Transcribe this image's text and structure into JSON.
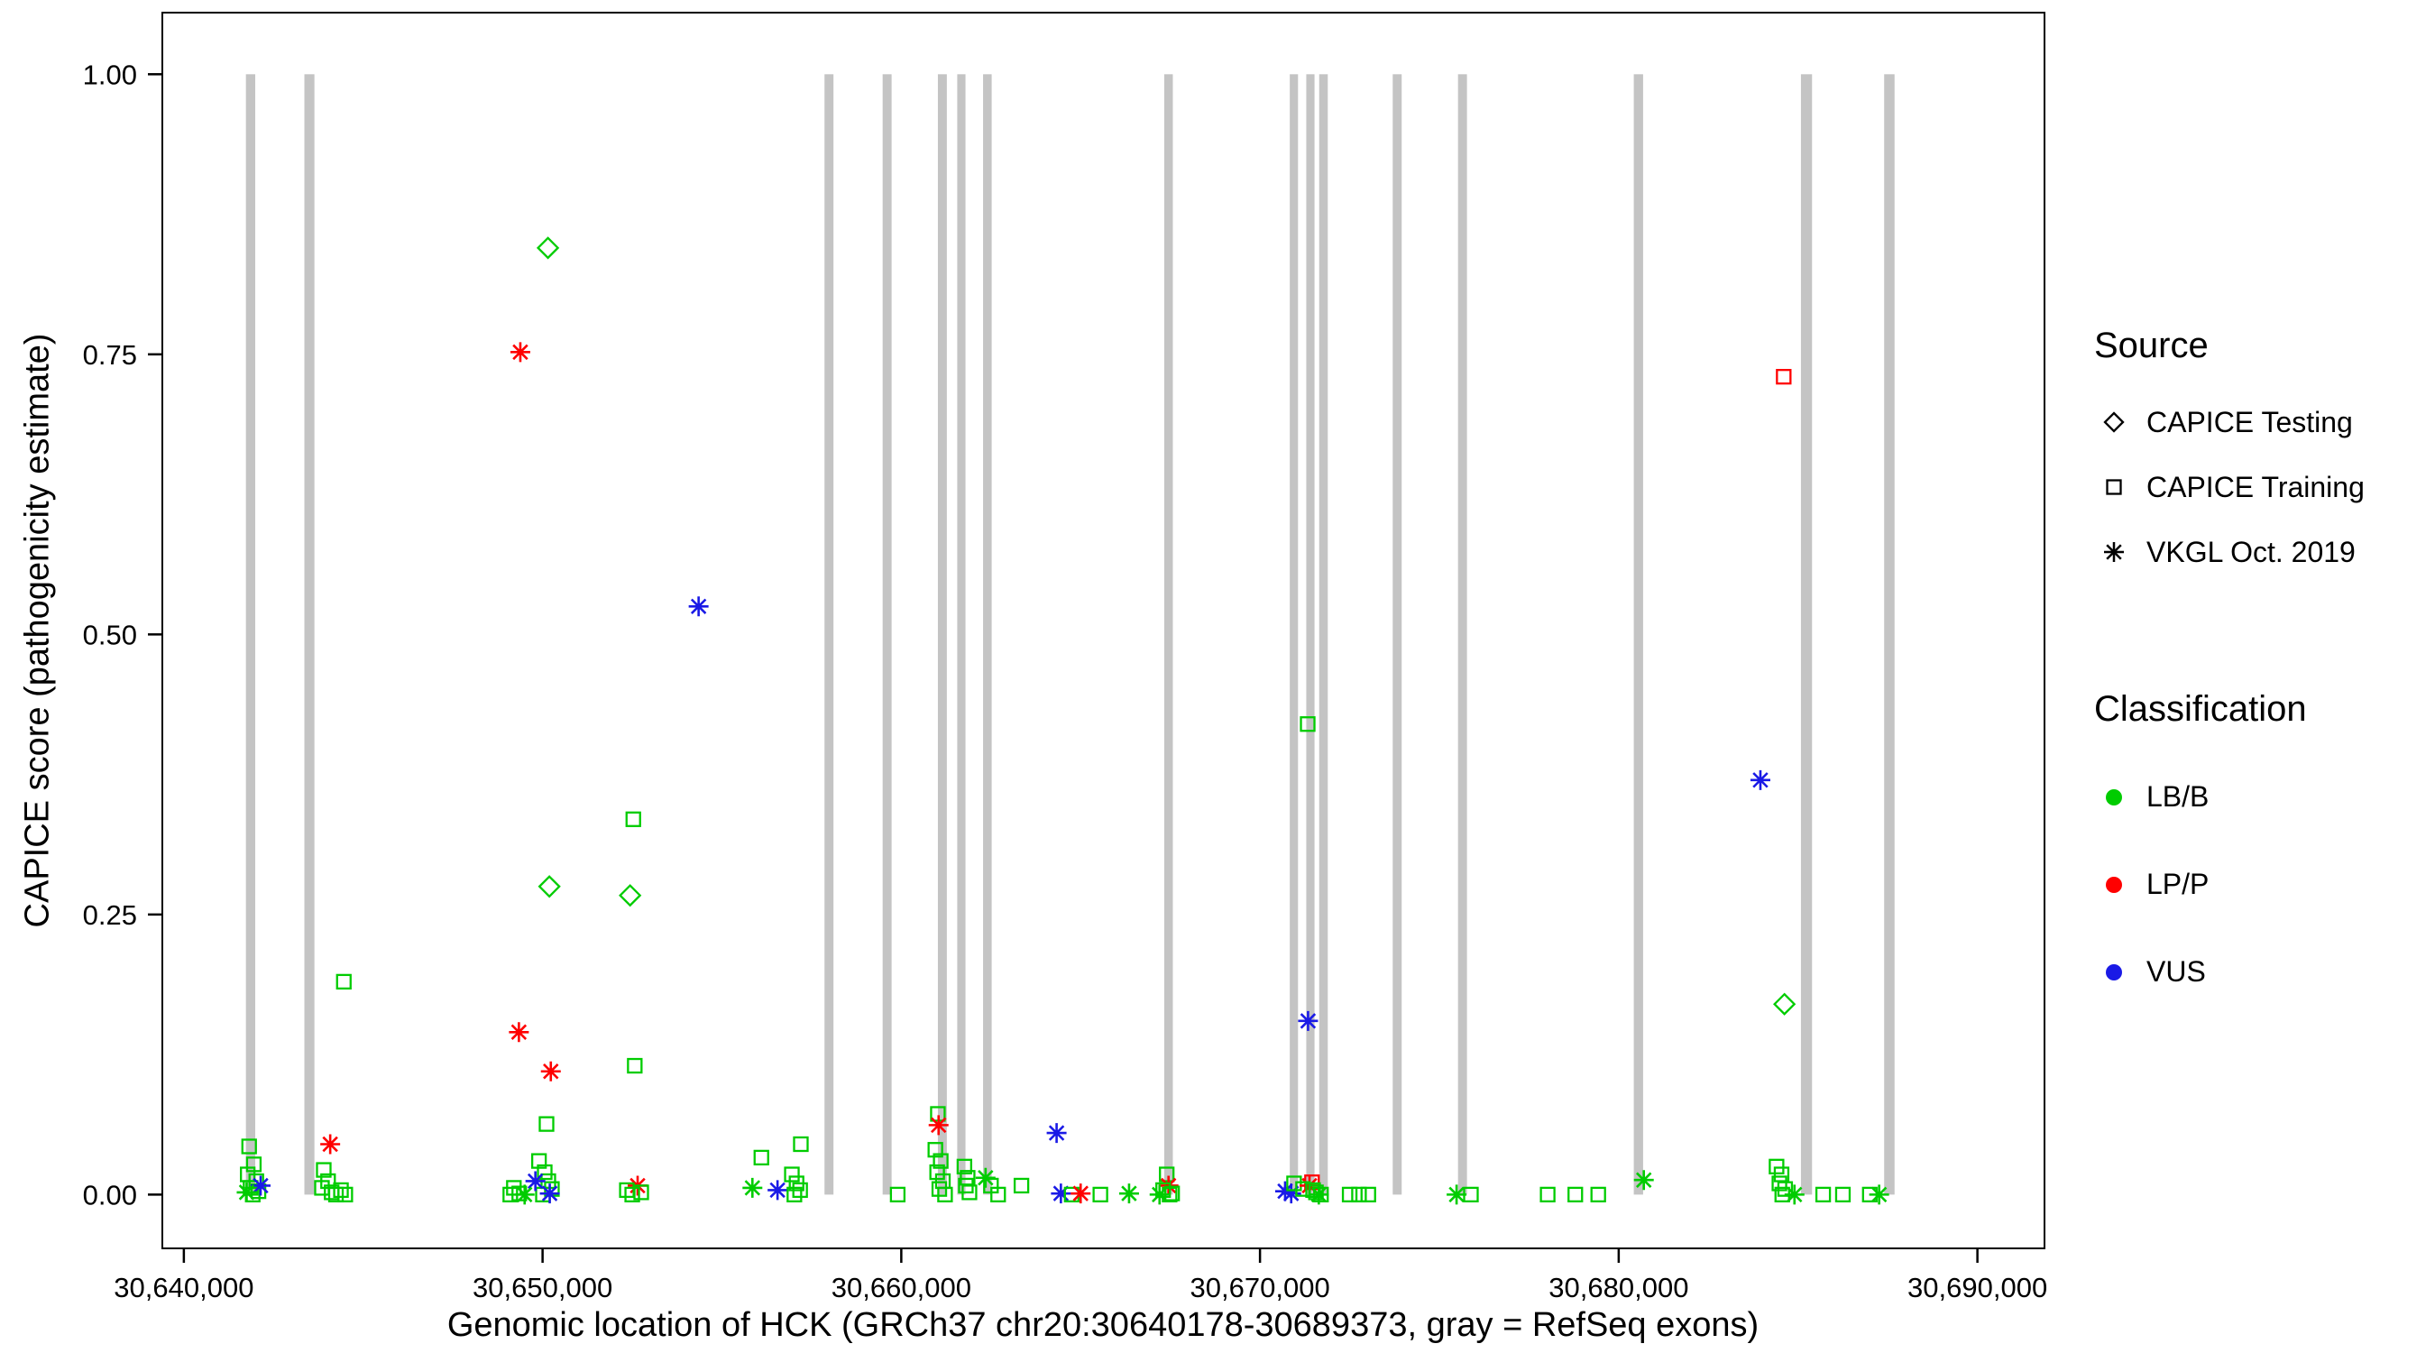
{
  "axes": {
    "x_label": "Genomic location of HCK (GRCh37 chr20:30640178-30689373, gray = RefSeq exons)",
    "y_label": "CAPICE score (pathogenicity estimate)"
  },
  "legend": {
    "source": {
      "title": "Source",
      "items": [
        {
          "label": "CAPICE Testing",
          "marker": "diamond"
        },
        {
          "label": "CAPICE Training",
          "marker": "square"
        },
        {
          "label": "VKGL Oct. 2019",
          "marker": "asterisk"
        }
      ]
    },
    "classification": {
      "title": "Classification",
      "items": [
        {
          "label": "LB/B",
          "color": "#00cc00"
        },
        {
          "label": "LP/P",
          "color": "#ff0000"
        },
        {
          "label": "VUS",
          "color": "#1a1ae6"
        }
      ]
    }
  },
  "chart_data": {
    "type": "scatter",
    "title": "",
    "xlabel": "Genomic location of HCK (GRCh37 chr20:30640178-30689373, gray = RefSeq exons)",
    "ylabel": "CAPICE score (pathogenicity estimate)",
    "xlim": [
      30639400,
      30691870
    ],
    "ylim": [
      0,
      1
    ],
    "ylim_expanded": [
      -0.048,
      1.055
    ],
    "grid": false,
    "legend_position": "right",
    "x_ticks": {
      "values": [
        30640000,
        30650000,
        30660000,
        30670000,
        30680000,
        30690000
      ],
      "labels": [
        "30,640,000",
        "30,650,000",
        "30,660,000",
        "30,670,000",
        "30,680,000",
        "30,690,000"
      ]
    },
    "y_ticks": {
      "values": [
        0,
        0.25,
        0.5,
        0.75,
        1.0
      ],
      "labels": [
        "0.00",
        "0.25",
        "0.50",
        "0.75",
        "1.00"
      ]
    },
    "exon_color": "#c4c4c4",
    "exons": [
      [
        30641730,
        30641990
      ],
      [
        30643360,
        30643640
      ],
      [
        30657860,
        30658110
      ],
      [
        30659480,
        30659730
      ],
      [
        30661020,
        30661270
      ],
      [
        30661560,
        30661790
      ],
      [
        30662280,
        30662520
      ],
      [
        30667330,
        30667570
      ],
      [
        30670830,
        30671060
      ],
      [
        30671290,
        30671520
      ],
      [
        30671650,
        30671890
      ],
      [
        30673700,
        30673950
      ],
      [
        30675520,
        30675770
      ],
      [
        30680420,
        30680680
      ],
      [
        30685080,
        30685390
      ],
      [
        30687400,
        30687690
      ]
    ],
    "colors": {
      "LB/B": "#00cc00",
      "LP/P": "#ff0000",
      "VUS": "#1a1ae6"
    },
    "marker_by_source": {
      "CAPICE Testing": "diamond",
      "CAPICE Training": "square",
      "VKGL Oct. 2019": "asterisk"
    },
    "encoding": {
      "point": [
        "x",
        "y",
        "source",
        "class"
      ],
      "source_codes": {
        "T": "CAPICE Testing",
        "R": "CAPICE Training",
        "V": "VKGL Oct. 2019"
      },
      "class_codes": {
        "B": "LB/B",
        "P": "LP/P",
        "U": "VUS"
      }
    },
    "points": [
      [
        30641820,
        0.043,
        "R",
        "B"
      ],
      [
        30641950,
        0.027,
        "R",
        "B"
      ],
      [
        30641780,
        0.018,
        "R",
        "B"
      ],
      [
        30642020,
        0.012,
        "R",
        "B"
      ],
      [
        30641860,
        0.006,
        "R",
        "B"
      ],
      [
        30642080,
        0.003,
        "R",
        "B"
      ],
      [
        30641920,
        0.0,
        "R",
        "B"
      ],
      [
        30642140,
        0.008,
        "V",
        "U"
      ],
      [
        30641750,
        0.002,
        "V",
        "B"
      ],
      [
        30644080,
        0.045,
        "V",
        "P"
      ],
      [
        30644460,
        0.19,
        "R",
        "B"
      ],
      [
        30643900,
        0.022,
        "R",
        "B"
      ],
      [
        30644020,
        0.012,
        "R",
        "B"
      ],
      [
        30643850,
        0.006,
        "R",
        "B"
      ],
      [
        30644120,
        0.002,
        "R",
        "B"
      ],
      [
        30644240,
        0.0,
        "R",
        "B"
      ],
      [
        30644380,
        0.004,
        "R",
        "B"
      ],
      [
        30644500,
        0.0,
        "R",
        "B"
      ],
      [
        30650150,
        0.845,
        "T",
        "B"
      ],
      [
        30649380,
        0.752,
        "V",
        "P"
      ],
      [
        30650190,
        0.275,
        "T",
        "B"
      ],
      [
        30649340,
        0.145,
        "V",
        "P"
      ],
      [
        30650230,
        0.11,
        "V",
        "P"
      ],
      [
        30650110,
        0.063,
        "R",
        "B"
      ],
      [
        30649900,
        0.03,
        "R",
        "B"
      ],
      [
        30650060,
        0.02,
        "R",
        "B"
      ],
      [
        30650160,
        0.012,
        "R",
        "B"
      ],
      [
        30650260,
        0.005,
        "R",
        "B"
      ],
      [
        30650010,
        0.0,
        "R",
        "B"
      ],
      [
        30649800,
        0.012,
        "V",
        "U"
      ],
      [
        30650200,
        0.001,
        "V",
        "U"
      ],
      [
        30649200,
        0.006,
        "R",
        "B"
      ],
      [
        30649350,
        0.001,
        "R",
        "B"
      ],
      [
        30649100,
        0.0,
        "R",
        "B"
      ],
      [
        30649500,
        0.0,
        "V",
        "B"
      ],
      [
        30652530,
        0.335,
        "R",
        "B"
      ],
      [
        30652440,
        0.267,
        "T",
        "B"
      ],
      [
        30652570,
        0.115,
        "R",
        "B"
      ],
      [
        30652650,
        0.008,
        "V",
        "P"
      ],
      [
        30652350,
        0.004,
        "R",
        "B"
      ],
      [
        30652750,
        0.002,
        "R",
        "B"
      ],
      [
        30652500,
        0.0,
        "R",
        "B"
      ],
      [
        30654350,
        0.525,
        "V",
        "U"
      ],
      [
        30655850,
        0.006,
        "V",
        "B"
      ],
      [
        30656100,
        0.033,
        "R",
        "B"
      ],
      [
        30656550,
        0.004,
        "V",
        "U"
      ],
      [
        30657200,
        0.045,
        "R",
        "B"
      ],
      [
        30656950,
        0.018,
        "R",
        "B"
      ],
      [
        30657080,
        0.01,
        "R",
        "B"
      ],
      [
        30657180,
        0.004,
        "R",
        "B"
      ],
      [
        30657020,
        0.0,
        "R",
        "B"
      ],
      [
        30659900,
        0.0,
        "R",
        "B"
      ],
      [
        30661020,
        0.072,
        "R",
        "B"
      ],
      [
        30661040,
        0.062,
        "V",
        "P"
      ],
      [
        30660950,
        0.04,
        "R",
        "B"
      ],
      [
        30661100,
        0.03,
        "R",
        "B"
      ],
      [
        30661000,
        0.02,
        "R",
        "B"
      ],
      [
        30661160,
        0.012,
        "R",
        "B"
      ],
      [
        30661060,
        0.005,
        "R",
        "B"
      ],
      [
        30661220,
        0.0,
        "R",
        "B"
      ],
      [
        30661760,
        0.025,
        "R",
        "B"
      ],
      [
        30661850,
        0.015,
        "R",
        "B"
      ],
      [
        30661800,
        0.008,
        "R",
        "B"
      ],
      [
        30661900,
        0.002,
        "R",
        "B"
      ],
      [
        30662350,
        0.015,
        "V",
        "B"
      ],
      [
        30662500,
        0.008,
        "R",
        "B"
      ],
      [
        30662700,
        0.0,
        "R",
        "B"
      ],
      [
        30663350,
        0.008,
        "R",
        "B"
      ],
      [
        30664330,
        0.055,
        "V",
        "U"
      ],
      [
        30664450,
        0.001,
        "V",
        "U"
      ],
      [
        30664750,
        0.0,
        "R",
        "B"
      ],
      [
        30665000,
        0.001,
        "V",
        "P"
      ],
      [
        30665550,
        0.0,
        "R",
        "B"
      ],
      [
        30666350,
        0.001,
        "V",
        "B"
      ],
      [
        30667400,
        0.018,
        "R",
        "B"
      ],
      [
        30667450,
        0.008,
        "V",
        "P"
      ],
      [
        30667300,
        0.004,
        "R",
        "B"
      ],
      [
        30667550,
        0.001,
        "R",
        "B"
      ],
      [
        30667200,
        0.0,
        "V",
        "B"
      ],
      [
        30667480,
        0.0,
        "R",
        "B"
      ],
      [
        30670700,
        0.003,
        "V",
        "U"
      ],
      [
        30670870,
        0.001,
        "V",
        "U"
      ],
      [
        30670950,
        0.01,
        "R",
        "B"
      ],
      [
        30671330,
        0.42,
        "R",
        "B"
      ],
      [
        30671340,
        0.155,
        "V",
        "U"
      ],
      [
        30671380,
        0.008,
        "V",
        "P"
      ],
      [
        30671450,
        0.011,
        "R",
        "P"
      ],
      [
        30671200,
        0.005,
        "R",
        "B"
      ],
      [
        30671560,
        0.002,
        "R",
        "B"
      ],
      [
        30671700,
        0.0,
        "R",
        "B"
      ],
      [
        30671480,
        0.004,
        "R",
        "B"
      ],
      [
        30671640,
        0.0,
        "V",
        "B"
      ],
      [
        30672500,
        0.0,
        "R",
        "B"
      ],
      [
        30672760,
        0.0,
        "R",
        "B"
      ],
      [
        30673020,
        0.0,
        "R",
        "B"
      ],
      [
        30675480,
        0.0,
        "V",
        "B"
      ],
      [
        30675880,
        0.0,
        "R",
        "B"
      ],
      [
        30678020,
        0.0,
        "R",
        "B"
      ],
      [
        30678790,
        0.0,
        "R",
        "B"
      ],
      [
        30679430,
        0.0,
        "R",
        "B"
      ],
      [
        30680700,
        0.013,
        "V",
        "B"
      ],
      [
        30683950,
        0.37,
        "V",
        "U"
      ],
      [
        30684600,
        0.73,
        "R",
        "P"
      ],
      [
        30684620,
        0.17,
        "T",
        "B"
      ],
      [
        30684400,
        0.025,
        "R",
        "B"
      ],
      [
        30684540,
        0.018,
        "R",
        "B"
      ],
      [
        30684480,
        0.01,
        "R",
        "B"
      ],
      [
        30684640,
        0.005,
        "R",
        "B"
      ],
      [
        30684560,
        0.0,
        "R",
        "B"
      ],
      [
        30684900,
        0.0,
        "V",
        "B"
      ],
      [
        30685700,
        0.0,
        "R",
        "B"
      ],
      [
        30686250,
        0.0,
        "R",
        "B"
      ],
      [
        30687000,
        0.0,
        "R",
        "B"
      ],
      [
        30687260,
        0.0,
        "V",
        "B"
      ]
    ]
  }
}
